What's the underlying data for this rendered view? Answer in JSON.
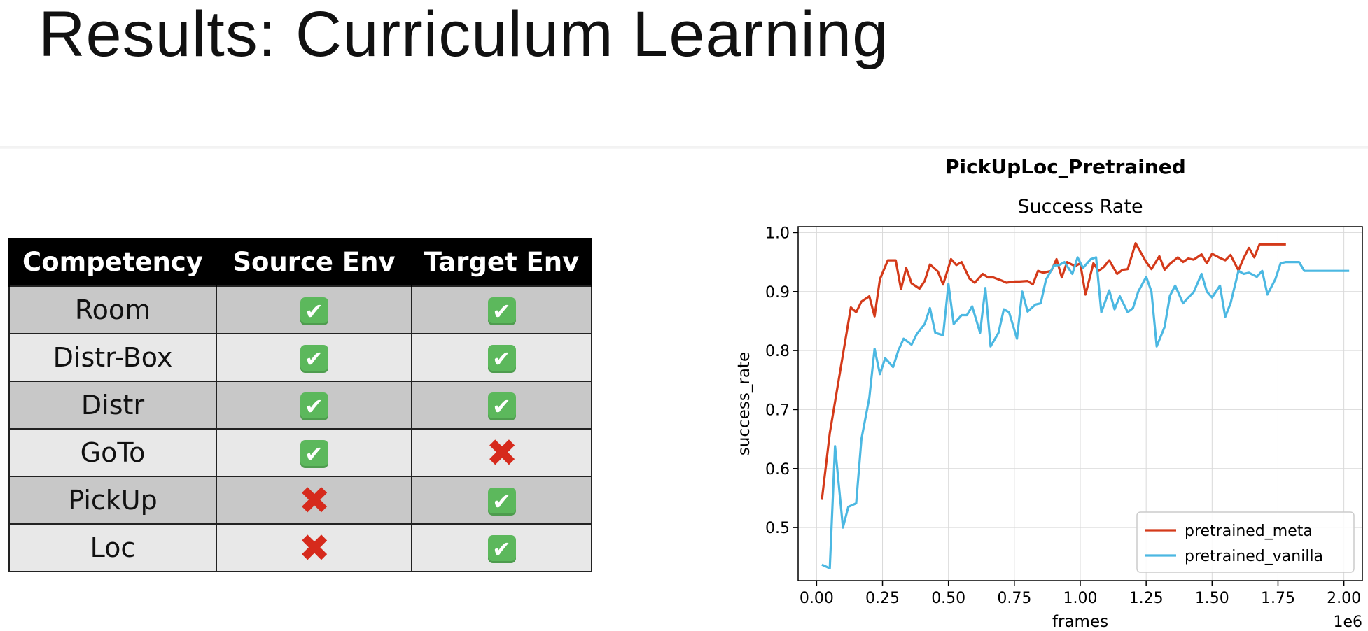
{
  "slide": {
    "title": "Results: Curriculum Learning"
  },
  "table": {
    "headers": [
      "Competency",
      "Source Env",
      "Target Env"
    ],
    "rows": [
      {
        "competency": "Room",
        "source": "check",
        "target": "check"
      },
      {
        "competency": "Distr-Box",
        "source": "check",
        "target": "check"
      },
      {
        "competency": "Distr",
        "source": "check",
        "target": "check"
      },
      {
        "competency": "GoTo",
        "source": "check",
        "target": "cross"
      },
      {
        "competency": "PickUp",
        "source": "cross",
        "target": "check"
      },
      {
        "competency": "Loc",
        "source": "cross",
        "target": "check"
      }
    ],
    "icons": {
      "check": "white-check-mark-icon",
      "cross": "cross-mark-icon"
    },
    "colors": {
      "check": "#5cb85c",
      "cross": "#d62a1c",
      "header_bg": "#000000"
    }
  },
  "chart_data": {
    "type": "line",
    "suptitle": "PickUpLoc_Pretrained",
    "title": "Success Rate",
    "xlabel": "frames",
    "ylabel": "success_rate",
    "x_offset_label": "1e6",
    "xlim": [
      -0.07,
      2.07
    ],
    "ylim": [
      0.41,
      1.01
    ],
    "xticks": [
      0.0,
      0.25,
      0.5,
      0.75,
      1.0,
      1.25,
      1.5,
      1.75,
      2.0
    ],
    "xtick_labels": [
      "0.00",
      "0.25",
      "0.50",
      "0.75",
      "1.00",
      "1.25",
      "1.50",
      "1.75",
      "2.00"
    ],
    "yticks": [
      0.5,
      0.6,
      0.7,
      0.8,
      0.9,
      1.0
    ],
    "ytick_labels": [
      "0.5",
      "0.6",
      "0.7",
      "0.8",
      "0.9",
      "1.0"
    ],
    "grid": true,
    "legend_position": "lower-right",
    "series": [
      {
        "name": "pretrained_meta",
        "color": "#d43a1a",
        "x": [
          0.02,
          0.05,
          0.08,
          0.11,
          0.13,
          0.15,
          0.17,
          0.2,
          0.22,
          0.24,
          0.27,
          0.3,
          0.32,
          0.34,
          0.36,
          0.39,
          0.41,
          0.43,
          0.46,
          0.48,
          0.51,
          0.53,
          0.55,
          0.58,
          0.6,
          0.63,
          0.65,
          0.67,
          0.7,
          0.72,
          0.75,
          0.77,
          0.8,
          0.82,
          0.84,
          0.86,
          0.89,
          0.91,
          0.93,
          0.95,
          0.98,
          1.0,
          1.02,
          1.05,
          1.07,
          1.09,
          1.11,
          1.14,
          1.16,
          1.18,
          1.21,
          1.23,
          1.25,
          1.27,
          1.3,
          1.32,
          1.34,
          1.37,
          1.39,
          1.41,
          1.43,
          1.46,
          1.48,
          1.5,
          1.53,
          1.55,
          1.57,
          1.6,
          1.62,
          1.64,
          1.66,
          1.68,
          1.71,
          1.73,
          1.75,
          1.78
        ],
        "values": [
          0.547,
          0.66,
          0.74,
          0.82,
          0.873,
          0.865,
          0.883,
          0.892,
          0.858,
          0.921,
          0.953,
          0.953,
          0.904,
          0.94,
          0.914,
          0.905,
          0.918,
          0.946,
          0.934,
          0.912,
          0.955,
          0.945,
          0.95,
          0.922,
          0.915,
          0.93,
          0.924,
          0.924,
          0.919,
          0.915,
          0.917,
          0.917,
          0.918,
          0.912,
          0.935,
          0.932,
          0.935,
          0.955,
          0.924,
          0.95,
          0.943,
          0.948,
          0.895,
          0.948,
          0.935,
          0.942,
          0.953,
          0.93,
          0.937,
          0.938,
          0.982,
          0.966,
          0.95,
          0.938,
          0.96,
          0.937,
          0.947,
          0.958,
          0.95,
          0.956,
          0.954,
          0.963,
          0.948,
          0.964,
          0.957,
          0.953,
          0.962,
          0.936,
          0.957,
          0.974,
          0.958,
          0.98,
          0.98,
          0.98,
          0.98,
          0.98
        ]
      },
      {
        "name": "pretrained_vanilla",
        "color": "#4cb8e2",
        "x": [
          0.02,
          0.05,
          0.07,
          0.1,
          0.12,
          0.15,
          0.17,
          0.2,
          0.22,
          0.24,
          0.26,
          0.29,
          0.31,
          0.33,
          0.36,
          0.38,
          0.41,
          0.43,
          0.45,
          0.48,
          0.5,
          0.52,
          0.55,
          0.57,
          0.59,
          0.62,
          0.64,
          0.66,
          0.69,
          0.71,
          0.73,
          0.76,
          0.78,
          0.8,
          0.83,
          0.85,
          0.87,
          0.9,
          0.92,
          0.94,
          0.97,
          0.99,
          1.01,
          1.04,
          1.06,
          1.08,
          1.11,
          1.13,
          1.15,
          1.18,
          1.2,
          1.22,
          1.25,
          1.27,
          1.29,
          1.32,
          1.34,
          1.36,
          1.39,
          1.41,
          1.43,
          1.46,
          1.48,
          1.5,
          1.53,
          1.55,
          1.57,
          1.6,
          1.62,
          1.64,
          1.67,
          1.69,
          1.71,
          1.74,
          1.76,
          1.78,
          1.81,
          1.83,
          1.85,
          1.88,
          1.9,
          1.92,
          1.95,
          1.97,
          1.99,
          2.02
        ],
        "values": [
          0.437,
          0.431,
          0.638,
          0.5,
          0.535,
          0.541,
          0.65,
          0.72,
          0.803,
          0.76,
          0.787,
          0.772,
          0.8,
          0.82,
          0.81,
          0.828,
          0.845,
          0.872,
          0.83,
          0.826,
          0.913,
          0.845,
          0.86,
          0.86,
          0.875,
          0.83,
          0.906,
          0.807,
          0.83,
          0.87,
          0.865,
          0.82,
          0.9,
          0.866,
          0.878,
          0.88,
          0.92,
          0.944,
          0.945,
          0.95,
          0.93,
          0.958,
          0.94,
          0.955,
          0.958,
          0.865,
          0.902,
          0.87,
          0.892,
          0.865,
          0.872,
          0.9,
          0.925,
          0.9,
          0.807,
          0.84,
          0.893,
          0.91,
          0.88,
          0.89,
          0.899,
          0.93,
          0.9,
          0.89,
          0.91,
          0.857,
          0.88,
          0.935,
          0.93,
          0.932,
          0.925,
          0.935,
          0.895,
          0.921,
          0.948,
          0.95,
          0.95,
          0.95,
          0.935,
          0.935,
          0.935,
          0.935,
          0.935,
          0.935,
          0.935,
          0.935
        ]
      }
    ]
  }
}
